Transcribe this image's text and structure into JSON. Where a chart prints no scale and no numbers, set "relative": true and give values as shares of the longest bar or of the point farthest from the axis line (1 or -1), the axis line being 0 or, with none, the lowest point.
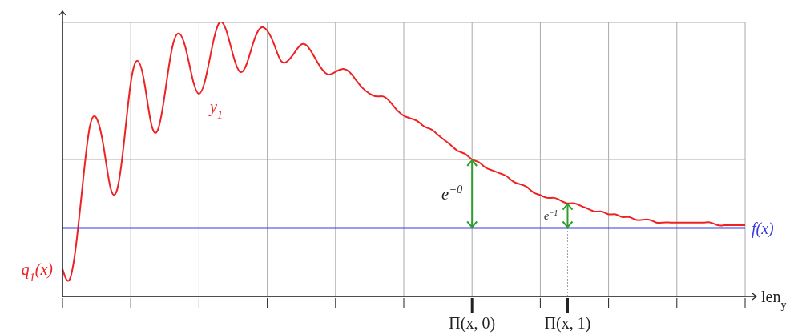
{
  "chart_data": {
    "type": "line",
    "relative": true,
    "xlabel": "len$_{y}$",
    "tick_labels": "x",
    "grid": true,
    "categories": [
      null,
      null,
      null,
      null,
      null,
      null,
      null,
      null,
      null,
      null,
      null,
      null,
      null,
      null,
      null,
      null,
      null,
      null,
      null,
      null,
      null,
      null,
      null,
      null,
      null,
      null,
      null,
      null,
      null,
      null,
      null,
      null,
      null,
      null,
      null,
      null,
      null,
      null,
      null,
      null,
      null,
      null,
      null,
      null,
      null,
      null,
      null,
      null,
      null,
      null,
      null,
      null,
      null,
      null,
      null,
      null,
      null,
      null,
      null,
      null,
      "Π(x, 0)",
      null,
      null,
      null,
      null,
      null,
      null,
      null,
      null,
      null,
      null,
      null,
      null,
      null,
      "Π(x, 1)",
      null,
      null,
      null,
      null,
      null,
      null,
      null,
      null,
      null,
      null,
      null,
      null,
      null,
      null,
      null,
      null,
      null,
      null,
      null,
      null,
      null,
      null,
      null,
      null,
      null,
      null
    ],
    "series": [
      {
        "name": "y$_{1}$",
        "color": "#ee2222",
        "values": [
          0.1,
          0.06,
          0.19,
          0.42,
          0.62,
          0.65,
          0.55,
          0.4,
          0.39,
          0.56,
          0.78,
          0.86,
          0.78,
          0.63,
          0.61,
          0.74,
          0.9,
          0.96,
          0.91,
          0.8,
          0.74,
          0.8,
          0.92,
          1.0,
          0.97,
          0.88,
          0.82,
          0.85,
          0.93,
          0.98,
          0.97,
          0.92,
          0.86,
          0.86,
          0.89,
          0.92,
          0.91,
          0.87,
          0.83,
          0.81,
          0.82,
          0.83,
          0.82,
          0.79,
          0.76,
          0.74,
          0.73,
          0.73,
          0.71,
          0.68,
          0.66,
          0.65,
          0.64,
          0.62,
          0.61,
          0.59,
          0.57,
          0.55,
          0.53,
          0.52,
          0.5,
          0.49,
          0.47,
          0.46,
          0.45,
          0.44,
          0.42,
          0.41,
          0.4,
          0.38,
          0.37,
          0.36,
          0.36,
          0.35,
          0.34,
          0.34,
          0.33,
          0.32,
          0.31,
          0.31,
          0.3,
          0.3,
          0.29,
          0.29,
          0.28,
          0.28,
          0.28,
          0.27,
          0.27,
          0.27,
          0.27,
          0.27,
          0.27,
          0.27,
          0.27,
          0.27,
          0.26,
          0.26,
          0.26,
          0.26,
          0.26
        ]
      },
      {
        "name": "f(x)",
        "color": "#3a3ae0",
        "values": [
          0.25,
          0.25,
          0.25,
          0.25,
          0.25,
          0.25,
          0.25,
          0.25,
          0.25,
          0.25,
          0.25,
          0.25,
          0.25,
          0.25,
          0.25,
          0.25,
          0.25,
          0.25,
          0.25,
          0.25,
          0.25,
          0.25,
          0.25,
          0.25,
          0.25,
          0.25,
          0.25,
          0.25,
          0.25,
          0.25,
          0.25,
          0.25,
          0.25,
          0.25,
          0.25,
          0.25,
          0.25,
          0.25,
          0.25,
          0.25,
          0.25,
          0.25,
          0.25,
          0.25,
          0.25,
          0.25,
          0.25,
          0.25,
          0.25,
          0.25,
          0.25,
          0.25,
          0.25,
          0.25,
          0.25,
          0.25,
          0.25,
          0.25,
          0.25,
          0.25,
          0.25,
          0.25,
          0.25,
          0.25,
          0.25,
          0.25,
          0.25,
          0.25,
          0.25,
          0.25,
          0.25,
          0.25,
          0.25,
          0.25,
          0.25,
          0.25,
          0.25,
          0.25,
          0.25,
          0.25,
          0.25,
          0.25,
          0.25,
          0.25,
          0.25,
          0.25,
          0.25,
          0.25,
          0.25,
          0.25,
          0.25,
          0.25,
          0.25,
          0.25,
          0.25,
          0.25,
          0.25,
          0.25,
          0.25,
          0.25,
          0.25
        ]
      }
    ],
    "annotations": [
      "q$_{1}$(x)",
      "e$^{−0}$",
      "e$^{−1}$"
    ]
  }
}
